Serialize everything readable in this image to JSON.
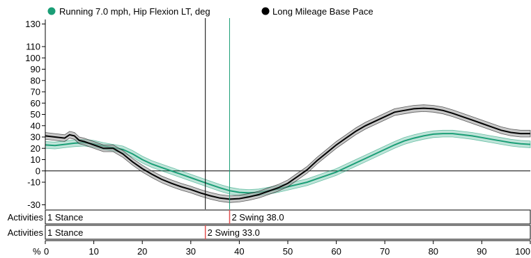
{
  "chart_data": {
    "type": "line",
    "title": "",
    "xlabel": "%",
    "ylabel": "",
    "xlim": [
      0,
      100
    ],
    "ylim": [
      -34,
      134
    ],
    "x_ticks": [
      0,
      10,
      20,
      30,
      40,
      50,
      60,
      70,
      80,
      90,
      100
    ],
    "y_ticks": [
      -30,
      -10,
      0,
      10,
      20,
      30,
      40,
      50,
      60,
      70,
      80,
      90,
      100,
      110,
      130
    ],
    "grid": false,
    "legend_position": "top",
    "series": [
      {
        "name": "Running 7.0 mph, Hip Flexion LT, deg",
        "color": "#1a9e76",
        "band": 3,
        "x": [
          0,
          2,
          4,
          6,
          8,
          10,
          12,
          14,
          16,
          18,
          20,
          22,
          24,
          26,
          28,
          30,
          32,
          34,
          36,
          38,
          40,
          42,
          44,
          46,
          48,
          50,
          52,
          54,
          56,
          58,
          60,
          62,
          64,
          66,
          68,
          70,
          72,
          74,
          76,
          78,
          80,
          82,
          84,
          86,
          88,
          90,
          92,
          94,
          96,
          98,
          100
        ],
        "values": [
          23,
          22.5,
          23.5,
          24.5,
          25,
          24,
          22,
          20.5,
          19,
          15,
          10,
          6,
          3,
          0,
          -3,
          -6,
          -9,
          -12,
          -15,
          -17.5,
          -19,
          -19.5,
          -19,
          -17.5,
          -16,
          -14,
          -12,
          -10,
          -7,
          -4,
          -1,
          3,
          7,
          11,
          15,
          19,
          23,
          26.5,
          29,
          31,
          32.5,
          33,
          33,
          32,
          31,
          29.5,
          28,
          26.5,
          25,
          24,
          23.5
        ]
      },
      {
        "name": "Long Mileage Base Pace",
        "color": "#000000",
        "band": 3,
        "x": [
          0,
          2,
          4,
          5,
          6,
          7,
          8,
          10,
          12,
          14,
          16,
          18,
          20,
          22,
          24,
          26,
          28,
          30,
          32,
          34,
          36,
          38,
          40,
          42,
          44,
          46,
          48,
          50,
          52,
          54,
          56,
          58,
          60,
          62,
          64,
          66,
          68,
          70,
          72,
          74,
          76,
          78,
          80,
          82,
          84,
          86,
          88,
          90,
          92,
          94,
          96,
          98,
          100
        ],
        "values": [
          31,
          30,
          29,
          32,
          31,
          27,
          26,
          23,
          20,
          20,
          15,
          8,
          2,
          -3,
          -7.5,
          -11,
          -14,
          -16.5,
          -19.5,
          -22,
          -24,
          -25,
          -24.5,
          -23,
          -21,
          -18,
          -15,
          -11,
          -5,
          1,
          9,
          16,
          23,
          29,
          35,
          40,
          44,
          48,
          52,
          53.5,
          55,
          55.5,
          55,
          53.5,
          51,
          48,
          45,
          42,
          39,
          36,
          34,
          33,
          33
        ]
      }
    ],
    "markers": [
      {
        "x": 33,
        "color": "#000000"
      },
      {
        "x": 38,
        "color": "#1a9e76"
      }
    ],
    "activity_rows": [
      {
        "label": "Activities",
        "color": "#1a9e76",
        "segments": [
          {
            "start": 0,
            "text": "1 Stance"
          },
          {
            "start": 38,
            "text": "2 Swing 38.0"
          }
        ]
      },
      {
        "label": "Activities",
        "color": "#000000",
        "segments": [
          {
            "start": 0,
            "text": "1 Stance"
          },
          {
            "start": 33,
            "text": "2 Swing 33.0"
          }
        ]
      }
    ]
  },
  "colors": {
    "green": "#1a9e76",
    "black": "#000000",
    "divider": "#e05050"
  }
}
